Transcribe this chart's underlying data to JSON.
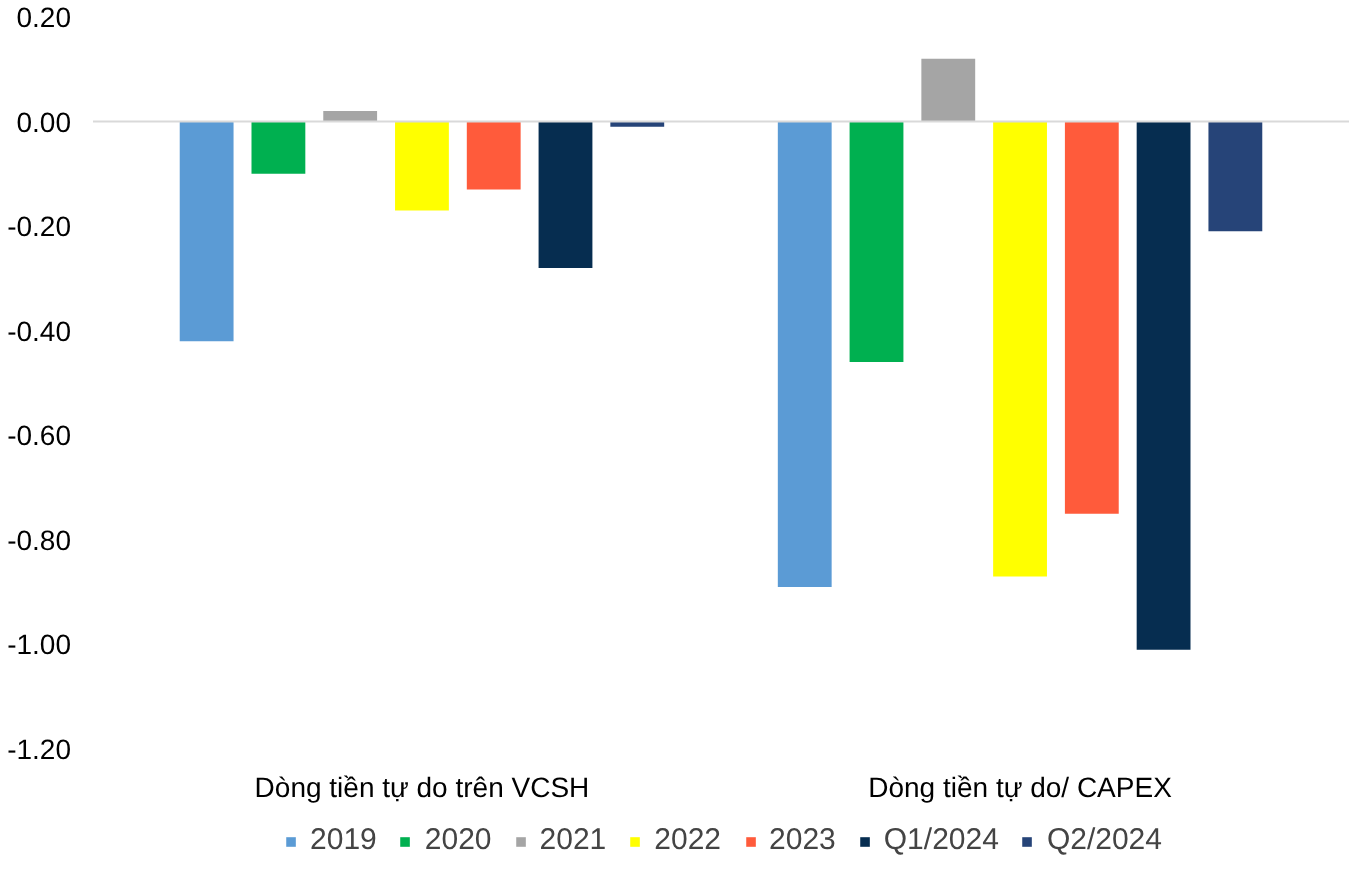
{
  "chart_data": {
    "type": "bar",
    "categories": [
      "Dòng tiền tự do trên VCSH",
      "Dòng tiền tự do/ CAPEX"
    ],
    "series": [
      {
        "name": "2019",
        "color": "#5b9bd5",
        "values": [
          -0.42,
          -0.89
        ]
      },
      {
        "name": "2020",
        "color": "#00b050",
        "values": [
          -0.1,
          -0.46
        ]
      },
      {
        "name": "2021",
        "color": "#a5a5a5",
        "values": [
          0.02,
          0.12
        ]
      },
      {
        "name": "2022",
        "color": "#ffff00",
        "values": [
          -0.17,
          -0.87
        ]
      },
      {
        "name": "2023",
        "color": "#ff5b3b",
        "values": [
          -0.13,
          -0.75
        ]
      },
      {
        "name": "Q1/2024",
        "color": "#062d50",
        "values": [
          -0.28,
          -1.01
        ]
      },
      {
        "name": "Q2/2024",
        "color": "#264478",
        "values": [
          -0.01,
          -0.21
        ]
      }
    ],
    "ylim": [
      -1.2,
      0.2
    ],
    "yticks": [
      {
        "value": 0.2,
        "label": "0.20"
      },
      {
        "value": 0,
        "label": "0.00"
      },
      {
        "value": -0.2,
        "label": "-0.20"
      },
      {
        "value": -0.4,
        "label": "-0.40"
      },
      {
        "value": -0.6,
        "label": "-0.60"
      },
      {
        "value": -0.8,
        "label": "-0.80"
      },
      {
        "value": -1.0,
        "label": "-1.00"
      },
      {
        "value": -1.2,
        "label": "-1.20"
      }
    ],
    "ref_lines": [
      {
        "axis": "y",
        "value": 0,
        "color": "#d9d9d9"
      }
    ],
    "grid": false,
    "legend": "bottom"
  }
}
